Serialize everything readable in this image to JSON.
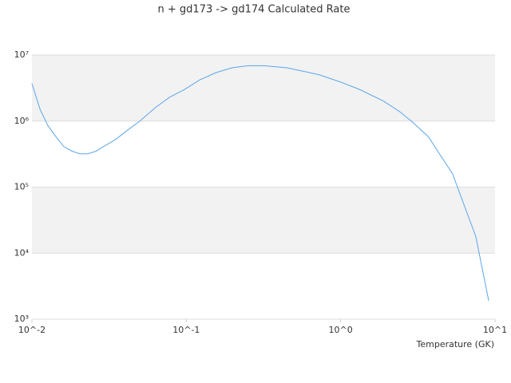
{
  "chart_data": {
    "type": "line",
    "title": "n + gd173 -> gd174 Calculated Rate",
    "x_label": "Temperature (GK)",
    "xscale": "log",
    "yscale": "log",
    "xlim": [
      0.01,
      10
    ],
    "ylim": [
      1000,
      10000000
    ],
    "xticks": [
      {
        "value": 0.01,
        "label": "10^-2"
      },
      {
        "value": 0.1,
        "label": "10^-1"
      },
      {
        "value": 1,
        "label": "10^0"
      },
      {
        "value": 10,
        "label": "10^1"
      }
    ],
    "yticks": [
      {
        "value": 1000,
        "label": "10³"
      },
      {
        "value": 10000,
        "label": "10⁴"
      },
      {
        "value": 100000,
        "label": "10⁵"
      },
      {
        "value": 1000000,
        "label": "10⁶"
      },
      {
        "value": 10000000,
        "label": "10⁷"
      }
    ],
    "grid": true,
    "x": [
      0.01,
      0.0113,
      0.0127,
      0.0143,
      0.0161,
      0.0182,
      0.0204,
      0.023,
      0.026,
      0.029,
      0.035,
      0.042,
      0.05,
      0.063,
      0.078,
      0.097,
      0.122,
      0.155,
      0.197,
      0.25,
      0.32,
      0.45,
      0.57,
      0.73,
      1.0,
      1.33,
      1.9,
      2.4,
      2.9,
      3.7,
      4.4,
      5.3,
      6.5,
      7.5,
      9.1
    ],
    "series": [
      {
        "name": "rate",
        "color": "#5aa6e8",
        "values": [
          3700000,
          1500000,
          850000,
          580000,
          410000,
          350000,
          320000,
          320000,
          350000,
          410000,
          530000,
          740000,
          1000000,
          1600000,
          2300000,
          3000000,
          4200000,
          5400000,
          6400000,
          6900000,
          6900000,
          6400000,
          5700000,
          5000000,
          3900000,
          3000000,
          2000000,
          1400000,
          980000,
          580000,
          310000,
          160000,
          44000,
          18000,
          1900
        ]
      }
    ]
  }
}
